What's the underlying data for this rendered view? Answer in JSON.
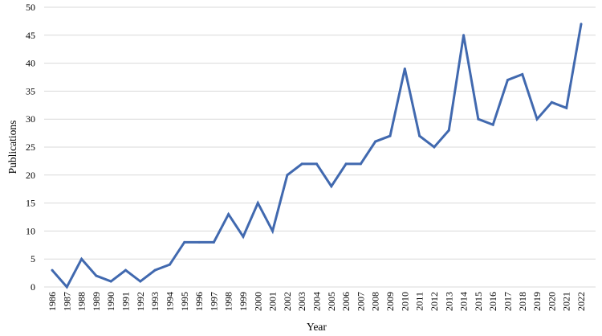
{
  "chart_data": {
    "type": "line",
    "title": "",
    "xlabel": "Year",
    "ylabel": "Publications",
    "ylim": [
      0,
      50
    ],
    "yticks": [
      0,
      5,
      10,
      15,
      20,
      25,
      30,
      35,
      40,
      45,
      50
    ],
    "grid": "horizontal",
    "legend": "none",
    "x": [
      "1986",
      "1987",
      "1988",
      "1989",
      "1990",
      "1991",
      "1992",
      "1993",
      "1994",
      "1995",
      "1996",
      "1997",
      "1998",
      "1999",
      "2000",
      "2001",
      "2002",
      "2003",
      "2004",
      "2005",
      "2006",
      "2007",
      "2008",
      "2009",
      "2010",
      "2011",
      "2012",
      "2013",
      "2014",
      "2015",
      "2016",
      "2017",
      "2018",
      "2019",
      "2020",
      "2021",
      "2022"
    ],
    "series": [
      {
        "color": "#4169AF",
        "values": [
          3,
          0,
          5,
          2,
          1,
          3,
          1,
          3,
          4,
          8,
          8,
          8,
          13,
          9,
          15,
          10,
          20,
          22,
          22,
          18,
          22,
          22,
          26,
          27,
          39,
          27,
          25,
          28,
          45,
          30,
          29,
          37,
          38,
          30,
          33,
          32,
          47
        ]
      }
    ]
  }
}
